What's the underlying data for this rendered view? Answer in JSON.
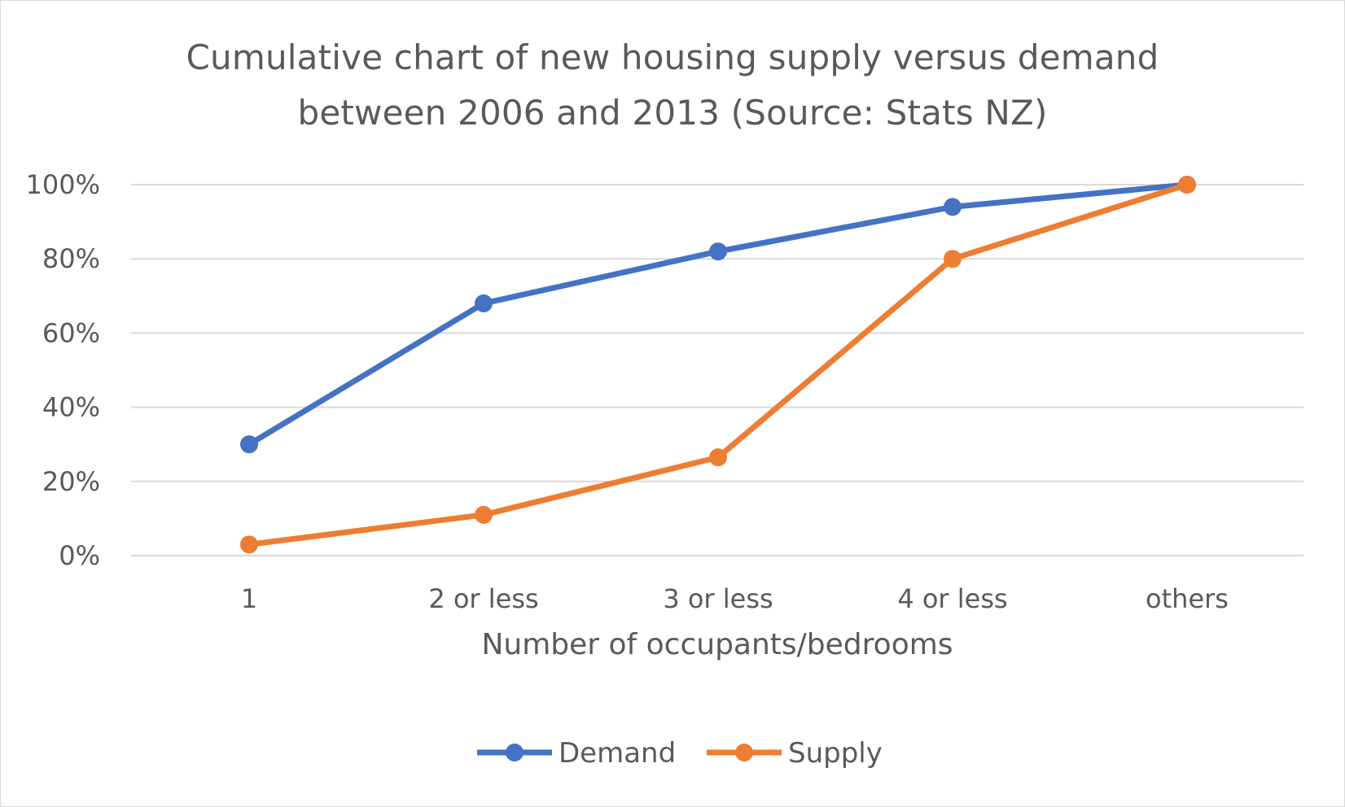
{
  "chart_data": {
    "type": "line",
    "title_line1": "Cumulative chart of new housing supply versus demand",
    "title_line2": "between 2006 and 2013 (Source: Stats NZ)",
    "xlabel": "Number of occupants/bedrooms",
    "ylabel": "",
    "categories": [
      "1",
      "2 or less",
      "3 or less",
      "4 or less",
      "others"
    ],
    "y_ticks": [
      "0%",
      "20%",
      "40%",
      "60%",
      "80%",
      "100%"
    ],
    "ylim": [
      0,
      100
    ],
    "grid": true,
    "legend_position": "bottom",
    "series": [
      {
        "name": "Demand",
        "color": "#4472c4",
        "values": [
          30,
          68,
          82,
          94,
          100
        ]
      },
      {
        "name": "Supply",
        "color": "#ed7d31",
        "values": [
          3,
          11,
          26.5,
          80,
          100
        ]
      }
    ]
  }
}
